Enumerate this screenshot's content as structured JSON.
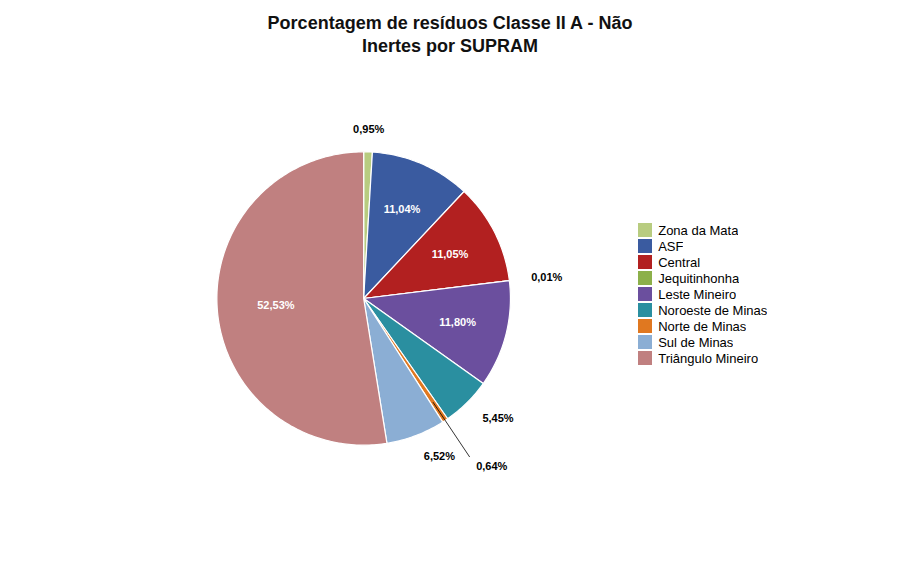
{
  "chart_data": {
    "type": "pie",
    "title": "Porcentagem de resíduos Classe II A - Não\nInertes por SUPRAM",
    "categories": [
      "Zona da Mata",
      "ASF",
      "Central",
      "Jequitinhonha",
      "Leste Mineiro",
      "Noroeste de Minas",
      "Norte de Minas",
      "Sul de Minas",
      "Triângulo Mineiro"
    ],
    "values": [
      0.95,
      11.04,
      11.05,
      0.01,
      11.8,
      5.45,
      0.64,
      6.52,
      52.53
    ],
    "value_labels": [
      "0,95%",
      "11,04%",
      "11,05%",
      "0,01%",
      "11,80%",
      "5,45%",
      "0,64%",
      "6,52%",
      "52,53%"
    ],
    "colors": [
      "#B8CC80",
      "#3A5BA0",
      "#B22020",
      "#8CB04A",
      "#6B4F9E",
      "#2A8FA0",
      "#E07820",
      "#8BAED4",
      "#C08080"
    ],
    "data_labels": true,
    "legend": "right"
  }
}
